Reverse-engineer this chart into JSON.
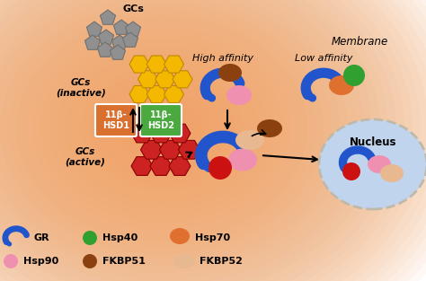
{
  "background_color": "#FDF0E0",
  "membrane_color": "#E8956D",
  "gc_inactive_color": "#F5B800",
  "gc_active_color": "#CC2222",
  "gc_gray_color": "#909090",
  "hsd1_box_color": "#D97030",
  "hsd2_box_color": "#4AAA40",
  "gr_color": "#2255CC",
  "hsp90_color": "#F090B0",
  "hsp70_color": "#E07030",
  "hsp40_color": "#30A030",
  "fkbp51_color": "#8B4010",
  "fkbp52_color": "#E8B890",
  "nucleus_fill": "#C0D4EE",
  "nucleus_border": "#C0B8A8",
  "red_dot_color": "#CC1111",
  "labels": {
    "membrane": "Membrane",
    "gcs": "GCs",
    "gcs_inactive": "GCs\n(inactive)",
    "gcs_active": "GCs\n(active)",
    "hsd1": "11β-\nHSD1",
    "hsd2": "11β-\nHSD2",
    "high_affinity": "High affinity",
    "low_affinity": "Low affinity",
    "nucleus": "Nucleus",
    "gr_leg": "GR",
    "hsp40_leg": "Hsp40",
    "hsp70_leg": "Hsp70",
    "hsp90_leg": "Hsp90",
    "fkbp51_leg": "FKBP51",
    "fkbp52_leg": "FKBP52"
  }
}
